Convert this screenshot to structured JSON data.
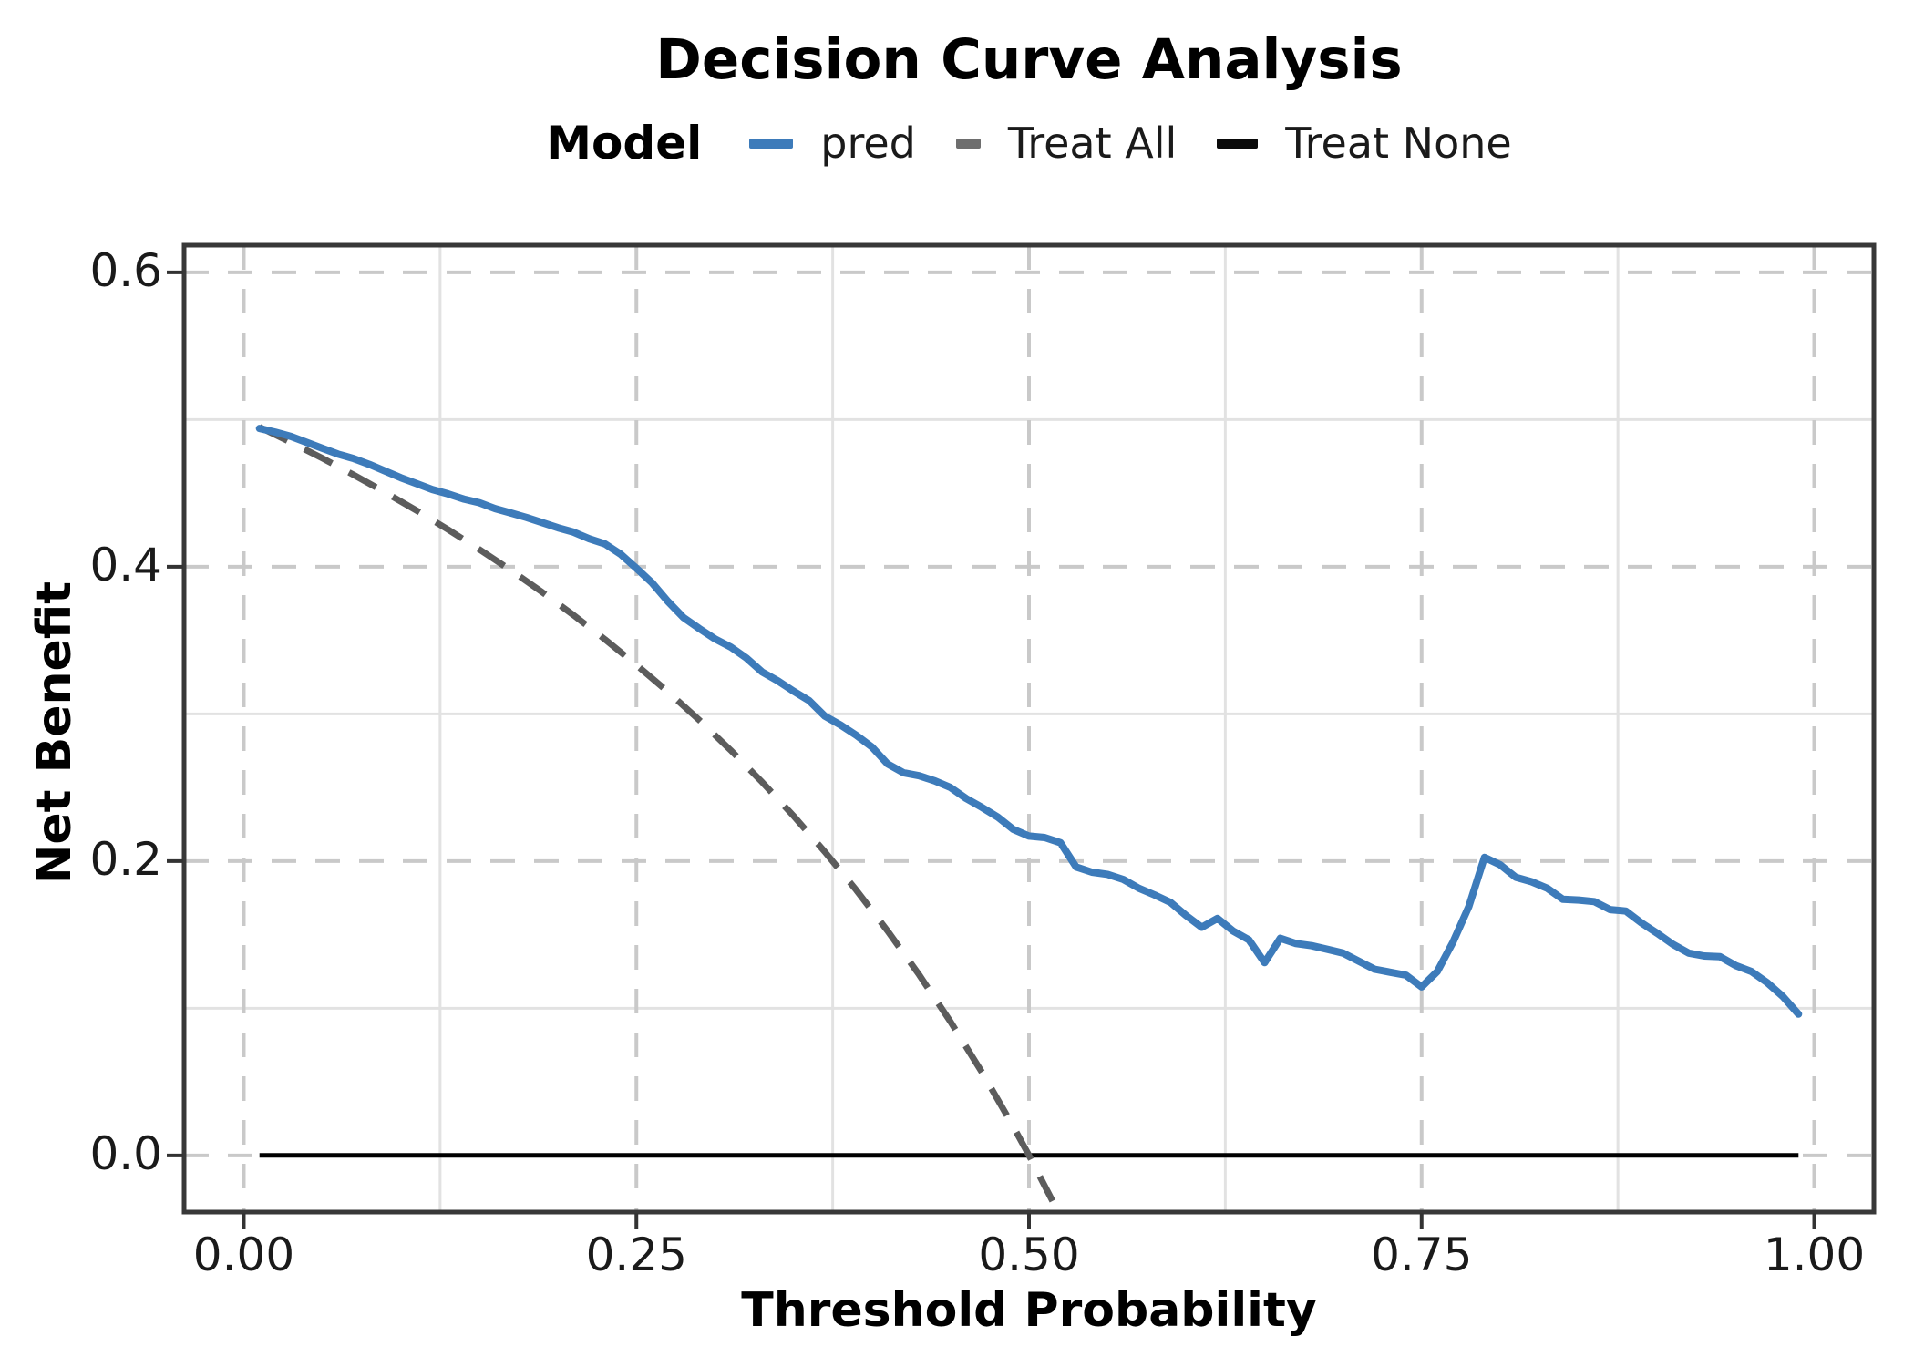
{
  "title": "Decision Curve Analysis",
  "legend": {
    "title": "Model",
    "items": [
      {
        "label": "pred",
        "swatch": "solid-line",
        "color": "#3d7bba",
        "key_width": 48,
        "key_height": 11
      },
      {
        "label": "Treat All",
        "swatch": "dash",
        "color": "#6e6e6e",
        "key_width": 27,
        "key_height": 11
      },
      {
        "label": "Treat None",
        "swatch": "solid-line",
        "color": "#0a0a0a",
        "key_width": 45,
        "key_height": 11
      }
    ]
  },
  "colors": {
    "pred_blue": "#3d7bba",
    "treat_all_gray": "#5c5c5c",
    "treat_none_black": "#000000",
    "panel_frame": "#383838",
    "grid_major": "#c9c9c9",
    "grid_minor": "#e2e2e2",
    "tick_mark": "#333333",
    "text": "#1a1a1a",
    "background": "#ffffff"
  },
  "chart_data": {
    "type": "line",
    "title": "Decision Curve Analysis",
    "xlabel": "Threshold Probability",
    "ylabel": "Net Benefit",
    "xlim": [
      -0.038,
      1.038
    ],
    "ylim": [
      -0.0385,
      0.6185
    ],
    "grid": "major dashed gray, minor solid light-gray",
    "legend_position": "top-center",
    "x_ticks": {
      "values": [
        0.0,
        0.25,
        0.5,
        0.75,
        1.0
      ],
      "labels": [
        "0.00",
        "0.25",
        "0.50",
        "0.75",
        "1.00"
      ]
    },
    "y_ticks": {
      "values": [
        0.0,
        0.2,
        0.4,
        0.6
      ],
      "labels": [
        "0.0",
        "0.2",
        "0.4",
        "0.6"
      ]
    },
    "x_minor_ticks": [
      0.125,
      0.375,
      0.625,
      0.875
    ],
    "y_minor_ticks": [
      0.1,
      0.3,
      0.5
    ],
    "series": [
      {
        "name": "Treat None",
        "color": "#000000",
        "style": "solid",
        "width": 5,
        "linecap": "butt",
        "x": [
          0.01,
          0.99
        ],
        "y": [
          0.0,
          0.0
        ]
      },
      {
        "name": "Treat All",
        "color": "#5c5c5c",
        "style": "dashed",
        "dash": "34 21",
        "width": 7,
        "linecap": "butt",
        "x": [
          0.01,
          0.03,
          0.05,
          0.07,
          0.09,
          0.11,
          0.13,
          0.15,
          0.17,
          0.19,
          0.21,
          0.23,
          0.25,
          0.27,
          0.29,
          0.31,
          0.33,
          0.35,
          0.37,
          0.39,
          0.41,
          0.43,
          0.45,
          0.47,
          0.49,
          0.5,
          0.515
        ],
        "y": [
          0.4949,
          0.4845,
          0.4737,
          0.4624,
          0.4505,
          0.4382,
          0.4253,
          0.4118,
          0.3976,
          0.3827,
          0.3671,
          0.3506,
          0.3333,
          0.3151,
          0.2958,
          0.2754,
          0.2537,
          0.2308,
          0.2063,
          0.1803,
          0.1525,
          0.1228,
          0.0909,
          0.0566,
          0.0196,
          0.0,
          -0.031
        ]
      },
      {
        "name": "pred",
        "color": "#3d7bba",
        "style": "solid",
        "width": 8,
        "linecap": "round",
        "x": [
          0.01,
          0.02,
          0.03,
          0.04,
          0.05,
          0.06,
          0.07,
          0.08,
          0.09,
          0.1,
          0.11,
          0.12,
          0.13,
          0.14,
          0.15,
          0.16,
          0.17,
          0.18,
          0.19,
          0.2,
          0.21,
          0.22,
          0.23,
          0.24,
          0.25,
          0.26,
          0.27,
          0.28,
          0.29,
          0.3,
          0.31,
          0.32,
          0.33,
          0.34,
          0.35,
          0.36,
          0.37,
          0.38,
          0.39,
          0.4,
          0.41,
          0.42,
          0.43,
          0.44,
          0.45,
          0.46,
          0.47,
          0.48,
          0.49,
          0.5,
          0.51,
          0.52,
          0.53,
          0.54,
          0.55,
          0.56,
          0.57,
          0.58,
          0.59,
          0.6,
          0.61,
          0.62,
          0.63,
          0.64,
          0.65,
          0.66,
          0.67,
          0.68,
          0.69,
          0.7,
          0.71,
          0.72,
          0.73,
          0.74,
          0.75,
          0.76,
          0.77,
          0.78,
          0.79,
          0.8,
          0.81,
          0.82,
          0.83,
          0.84,
          0.85,
          0.86,
          0.87,
          0.88,
          0.89,
          0.9,
          0.91,
          0.92,
          0.93,
          0.94,
          0.95,
          0.96,
          0.97,
          0.98,
          0.99
        ],
        "y": [
          0.494,
          0.4915,
          0.4885,
          0.4845,
          0.4805,
          0.4765,
          0.4735,
          0.4695,
          0.465,
          0.4605,
          0.4565,
          0.4525,
          0.4495,
          0.446,
          0.4435,
          0.4395,
          0.4365,
          0.4335,
          0.43,
          0.4265,
          0.4235,
          0.419,
          0.4155,
          0.4085,
          0.399,
          0.389,
          0.3765,
          0.3655,
          0.358,
          0.351,
          0.3455,
          0.338,
          0.3285,
          0.3225,
          0.3155,
          0.309,
          0.2985,
          0.2925,
          0.2855,
          0.2775,
          0.266,
          0.26,
          0.258,
          0.2545,
          0.25,
          0.2425,
          0.2365,
          0.23,
          0.2215,
          0.217,
          0.216,
          0.2125,
          0.196,
          0.1925,
          0.191,
          0.1875,
          0.1815,
          0.177,
          0.172,
          0.163,
          0.155,
          0.161,
          0.1525,
          0.1465,
          0.131,
          0.1475,
          0.144,
          0.1425,
          0.14,
          0.1375,
          0.132,
          0.1265,
          0.1245,
          0.1225,
          0.1145,
          0.125,
          0.145,
          0.169,
          0.2025,
          0.1975,
          0.189,
          0.186,
          0.1815,
          0.174,
          0.1735,
          0.1725,
          0.167,
          0.166,
          0.158,
          0.151,
          0.1435,
          0.1375,
          0.1355,
          0.135,
          0.129,
          0.125,
          0.1175,
          0.108,
          0.096
        ]
      }
    ]
  }
}
